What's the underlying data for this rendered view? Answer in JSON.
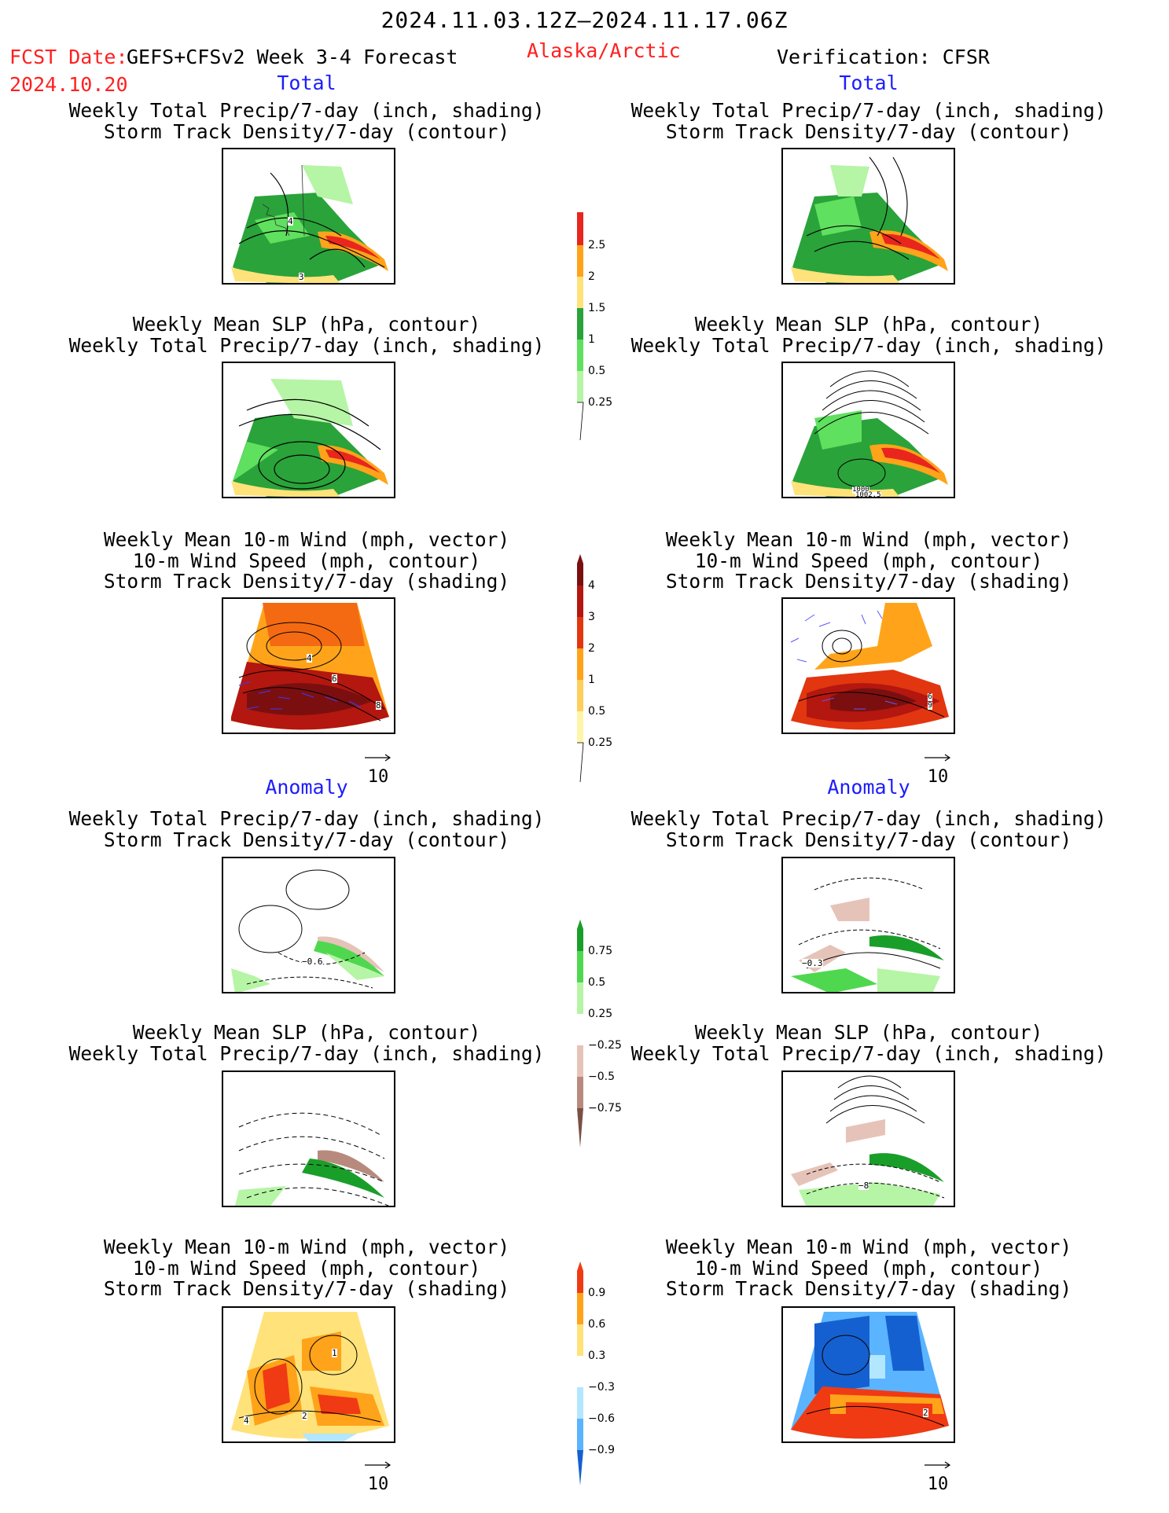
{
  "header": {
    "period": "2024.11.03.12Z–2024.11.17.06Z",
    "fcst_label": "FCST Date:",
    "product": "GEFS+CFSv2 Week 3-4 Forecast",
    "fcst_date": "2024.10.20",
    "region": "Alaska/Arctic",
    "verification": "Verification: CFSR"
  },
  "sections": {
    "total_left": "Total",
    "total_right": "Total",
    "anomaly_left": "Anomaly",
    "anomaly_right": "Anomaly"
  },
  "panel_titles": {
    "precip_track": [
      "Weekly Total Precip/7-day (inch, shading)",
      "Storm Track Density/7-day (contour)"
    ],
    "slp_precip": [
      "Weekly Mean SLP (hPa, contour)",
      "Weekly Total Precip/7-day (inch, shading)"
    ],
    "wind_track": [
      "Weekly Mean 10-m Wind (mph, vector)",
      "10-m Wind Speed (mph, contour)",
      "Storm Track Density/7-day (shading)"
    ]
  },
  "colorbars": {
    "precip_total": {
      "levels": [
        "2.5",
        "2",
        "1.5",
        "1",
        "0.5",
        "0.25"
      ],
      "colors": [
        "#e8261e",
        "#ffa31a",
        "#ffe27a",
        "#2aa33a",
        "#5fe05f",
        "#b5f5a5"
      ]
    },
    "track_total": {
      "levels": [
        "4",
        "3",
        "2",
        "1",
        "0.5",
        "0.25"
      ],
      "colors": [
        "#7b0f0f",
        "#b3170f",
        "#e23610",
        "#f46a12",
        "#ffa41a",
        "#ffce5c",
        "#fff5a8"
      ]
    },
    "precip_anom": {
      "levels": [
        "0.75",
        "0.5",
        "0.25",
        "−0.25",
        "−0.5",
        "−0.75"
      ],
      "colors": [
        "#1a9e2a",
        "#4fd84f",
        "#b5f5a5",
        "#ffffff",
        "#e6c3b8",
        "#b88a7d",
        "#7a5045"
      ]
    },
    "track_anom": {
      "levels": [
        "0.9",
        "0.6",
        "0.3",
        "−0.3",
        "−0.6",
        "−0.9"
      ],
      "colors": [
        "#f03a14",
        "#ffa31a",
        "#ffe27a",
        "#ffffff",
        "#b3e6ff",
        "#5ab4ff",
        "#1560d0"
      ]
    }
  },
  "contour_labels": {
    "l_precip_track_total": [
      "4",
      "3"
    ],
    "r_slp_precip_total": [
      "1000",
      "1002.5"
    ],
    "l_wind_total": [
      "4",
      "6",
      "8"
    ],
    "r_wind_total": [
      "6",
      "9"
    ],
    "l_precip_track_anom": [
      "−0.6"
    ],
    "r_precip_track_anom": [
      "−0.3"
    ],
    "r_slp_precip_anom": [
      "−8"
    ],
    "l_wind_anom": [
      "1",
      "4",
      "2"
    ],
    "r_wind_anom": [
      "2"
    ]
  },
  "vector_reference": "10"
}
